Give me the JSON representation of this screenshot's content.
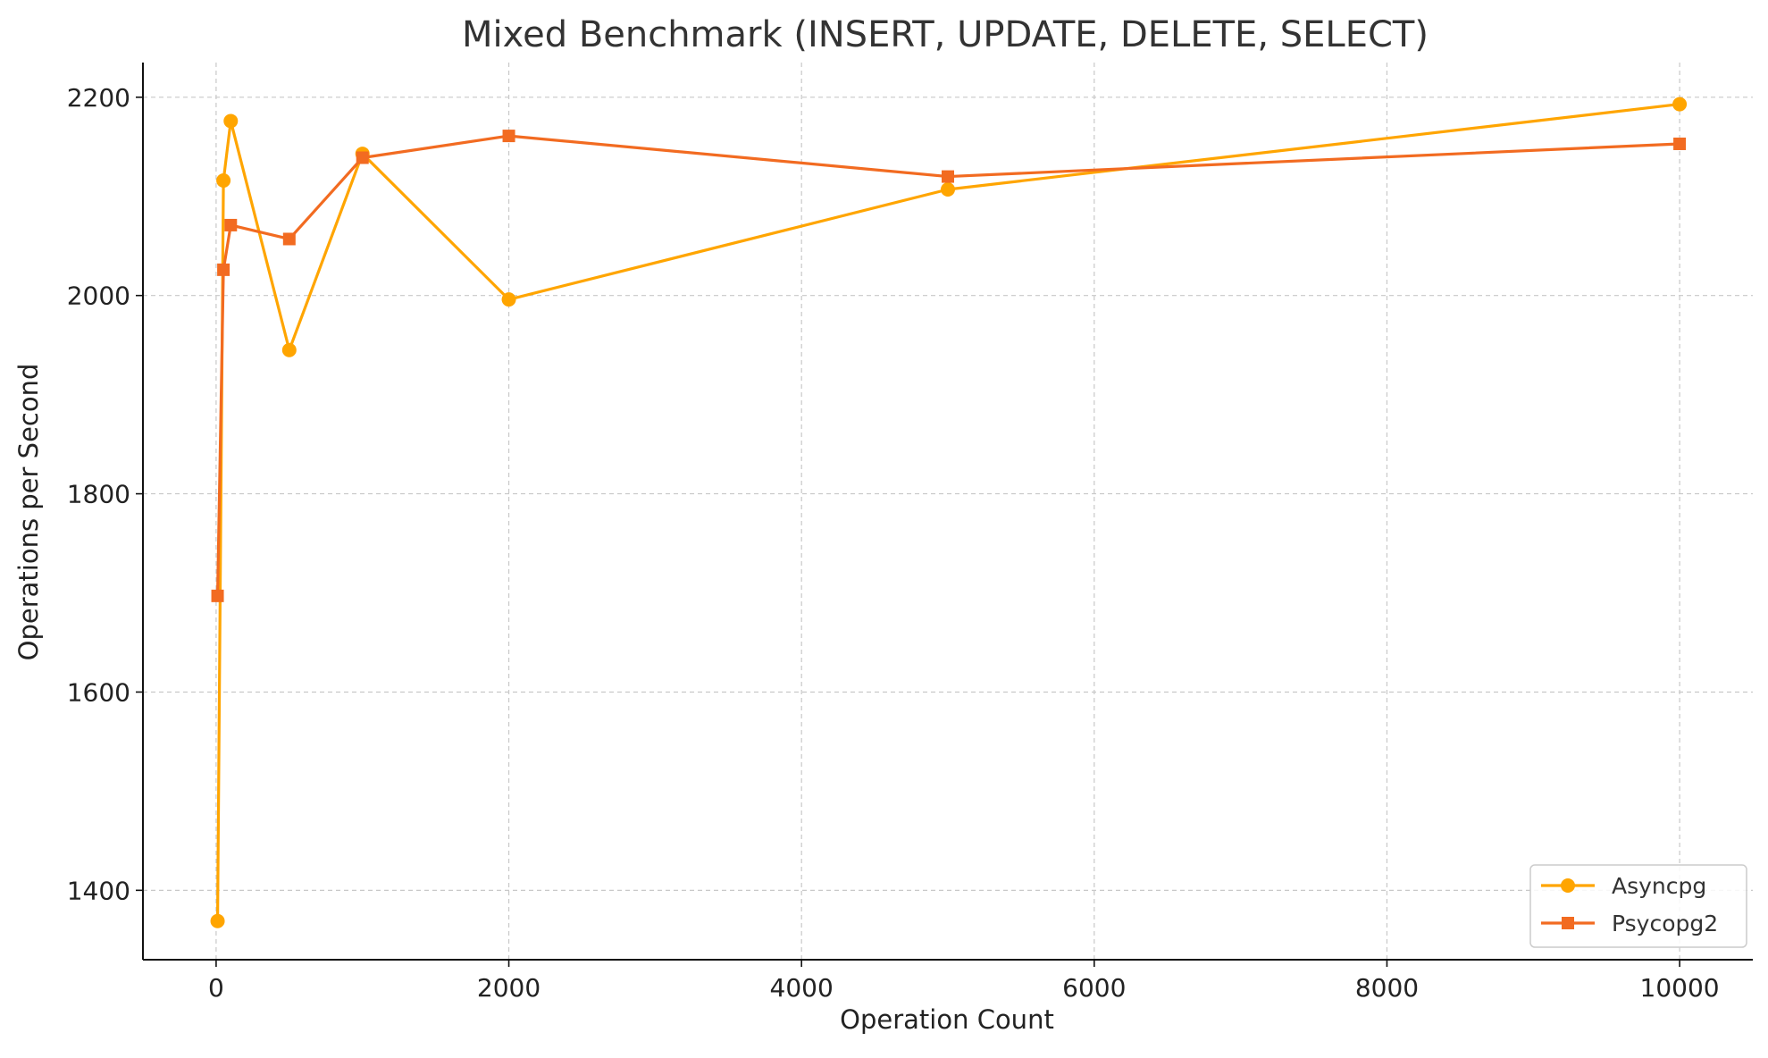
{
  "chart_data": {
    "type": "line",
    "title": "Mixed Benchmark (INSERT, UPDATE, DELETE, SELECT)",
    "xlabel": "Operation Count",
    "ylabel": "Operations per Second",
    "xlim": [
      -500,
      10500
    ],
    "ylim": [
      1330,
      2235
    ],
    "xticks": [
      0,
      2000,
      4000,
      6000,
      8000,
      10000
    ],
    "yticks": [
      1400,
      1600,
      1800,
      2000,
      2200
    ],
    "grid": true,
    "legend_position": "bottom-right",
    "x": [
      10,
      50,
      100,
      500,
      1000,
      2000,
      5000,
      10000
    ],
    "series": [
      {
        "name": "Asyncpg",
        "color": "#FFA500",
        "marker": "circle",
        "values": [
          1369,
          2116,
          2176,
          1945,
          2143,
          1996,
          2107,
          2193
        ]
      },
      {
        "name": "Psycopg2",
        "color": "#F26B21",
        "marker": "square",
        "values": [
          1697,
          2026,
          2071,
          2057,
          2139,
          2161,
          2120,
          2153
        ]
      }
    ]
  }
}
